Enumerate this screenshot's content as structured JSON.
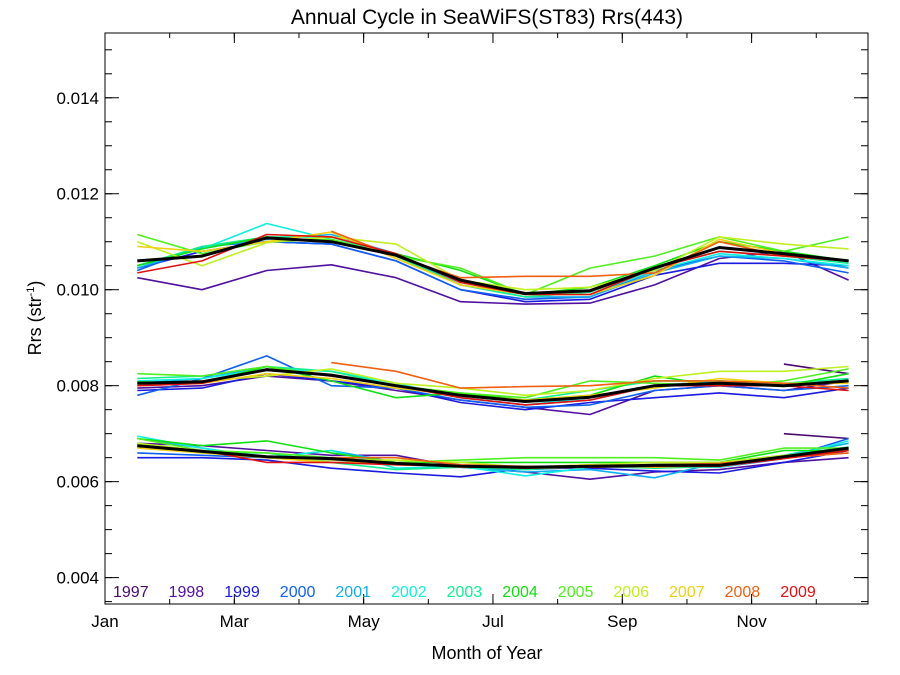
{
  "chart_data": {
    "type": "line",
    "title": "Annual Cycle in SeaWiFS(ST83) Rrs(443)",
    "xlabel": "Month of Year",
    "ylabel_main": "Rrs (str",
    "ylabel_sup": "-1",
    "ylabel_close": ")",
    "xlim": [
      1,
      12.8
    ],
    "ylim": [
      0.00345,
      0.01535
    ],
    "x_ticks": [
      {
        "value": 1,
        "label": "Jan"
      },
      {
        "value": 3,
        "label": "Mar"
      },
      {
        "value": 5,
        "label": "May"
      },
      {
        "value": 7,
        "label": "Jul"
      },
      {
        "value": 9,
        "label": "Sep"
      },
      {
        "value": 11,
        "label": "Nov"
      }
    ],
    "y_ticks": [
      {
        "value": 0.004,
        "label": "0.004"
      },
      {
        "value": 0.006,
        "label": "0.006"
      },
      {
        "value": 0.008,
        "label": "0.008"
      },
      {
        "value": 0.01,
        "label": "0.010"
      },
      {
        "value": 0.012,
        "label": "0.012"
      },
      {
        "value": 0.014,
        "label": "0.014"
      }
    ],
    "x": [
      1.5,
      2.5,
      3.5,
      4.5,
      5.5,
      6.5,
      7.5,
      8.5,
      9.5,
      10.5,
      11.5,
      12.5
    ],
    "legend_placement": "bottom-left",
    "series": [
      {
        "name": "1997",
        "color": "#4a0a6e",
        "groups": [
          [
            null,
            null,
            null,
            null,
            null,
            null,
            null,
            null,
            null,
            null,
            null,
            null
          ],
          [
            null,
            null,
            null,
            null,
            null,
            null,
            null,
            null,
            null,
            null,
            0.00845,
            0.00825
          ],
          [
            null,
            null,
            null,
            null,
            null,
            null,
            null,
            null,
            null,
            null,
            0.007,
            0.0069
          ]
        ]
      },
      {
        "name": "1998",
        "color": "#5010a0",
        "groups": [
          [
            0.01025,
            0.01,
            0.0104,
            0.01052,
            0.01025,
            0.00975,
            0.0097,
            0.00972,
            0.0101,
            0.01065,
            0.0108,
            0.0102
          ],
          [
            0.00795,
            0.008,
            0.0082,
            0.0081,
            0.0079,
            0.0077,
            0.00755,
            0.0074,
            0.0079,
            0.008,
            0.0079,
            0.0081
          ],
          [
            0.0068,
            0.00675,
            0.00665,
            0.00655,
            0.00655,
            0.0063,
            0.0062,
            0.00605,
            0.0062,
            0.00625,
            0.0064,
            0.0065
          ]
        ]
      },
      {
        "name": "1999",
        "color": "#1a1ae0",
        "groups": [
          [
            0.01045,
            0.0108,
            0.011,
            0.01095,
            0.0106,
            0.01,
            0.00975,
            0.0098,
            0.0103,
            0.01055,
            0.01055,
            0.0105
          ],
          [
            0.0079,
            0.00795,
            0.00825,
            0.0081,
            0.00795,
            0.00765,
            0.0075,
            0.00765,
            0.00775,
            0.00785,
            0.00775,
            0.00795
          ],
          [
            0.0065,
            0.0065,
            0.00645,
            0.00628,
            0.00618,
            0.0061,
            0.00628,
            0.00628,
            0.00622,
            0.00618,
            0.0064,
            0.00665
          ]
        ]
      },
      {
        "name": "2000",
        "color": "#1060f0",
        "groups": [
          [
            0.0104,
            0.0109,
            0.011,
            0.01095,
            0.0106,
            0.01,
            0.0098,
            0.00985,
            0.0104,
            0.0107,
            0.0106,
            0.01035
          ],
          [
            0.0078,
            0.00815,
            0.00862,
            0.008,
            0.00795,
            0.0077,
            0.00755,
            0.0076,
            0.0079,
            0.008,
            0.0079,
            0.008
          ],
          [
            0.0066,
            0.00655,
            0.0065,
            0.00645,
            0.0064,
            0.0063,
            0.00625,
            0.0063,
            0.00632,
            0.0063,
            0.00648,
            0.0069
          ]
        ]
      },
      {
        "name": "2001",
        "color": "#10b0f0",
        "groups": [
          [
            0.01045,
            0.01088,
            0.01105,
            0.01115,
            0.01075,
            0.0101,
            0.00985,
            0.00985,
            0.01035,
            0.0107,
            0.01065,
            0.01045
          ],
          [
            0.00805,
            0.00815,
            0.0084,
            0.0082,
            0.008,
            0.00775,
            0.0076,
            0.0077,
            0.008,
            0.0081,
            0.008,
            0.0081
          ],
          [
            0.0069,
            0.0067,
            0.0065,
            0.00665,
            0.0064,
            0.0063,
            0.0062,
            0.00625,
            0.00608,
            0.0064,
            0.00655,
            0.0068
          ]
        ]
      },
      {
        "name": "2002",
        "color": "#10f0e0",
        "groups": [
          [
            0.0105,
            0.01085,
            0.01138,
            0.01105,
            0.0107,
            0.0101,
            0.0099,
            0.0099,
            0.0104,
            0.01075,
            0.01065,
            0.0105
          ],
          [
            0.0081,
            0.00815,
            0.00835,
            0.0083,
            0.00805,
            0.00775,
            0.0076,
            0.00775,
            0.008,
            0.0081,
            0.008,
            0.0081
          ],
          [
            0.00695,
            0.0067,
            0.0065,
            0.00665,
            0.00628,
            0.00632,
            0.00612,
            0.0063,
            0.00632,
            0.0063,
            0.0065,
            0.00685
          ]
        ]
      },
      {
        "name": "2003",
        "color": "#10f090",
        "groups": [
          [
            0.0105,
            0.0109,
            0.0111,
            0.0111,
            0.0107,
            0.0101,
            0.00985,
            0.00995,
            0.01045,
            0.0108,
            0.0107,
            0.01055
          ],
          [
            0.00815,
            0.0082,
            0.0084,
            0.0083,
            0.008,
            0.0078,
            0.0077,
            0.0079,
            0.0081,
            0.0081,
            0.00805,
            0.00815
          ],
          [
            0.0068,
            0.0066,
            0.0066,
            0.0064,
            0.00625,
            0.0063,
            0.00625,
            0.00632,
            0.00628,
            0.00632,
            0.00655,
            0.00672
          ]
        ]
      },
      {
        "name": "2004",
        "color": "#10e010",
        "groups": [
          [
            0.0105,
            0.01085,
            0.0111,
            0.011,
            0.01075,
            0.0104,
            0.0099,
            0.01005,
            0.0105,
            0.011,
            0.0108,
            0.0106
          ],
          [
            0.00808,
            0.00805,
            0.0084,
            0.0081,
            0.00775,
            0.00785,
            0.0077,
            0.0078,
            0.0082,
            0.008,
            0.008,
            0.00825
          ],
          [
            0.0069,
            0.00675,
            0.00685,
            0.0066,
            0.0064,
            0.0064,
            0.0064,
            0.0064,
            0.0064,
            0.0064,
            0.00665,
            0.00665
          ]
        ]
      },
      {
        "name": "2005",
        "color": "#50f020",
        "groups": [
          [
            0.01115,
            0.01075,
            0.011,
            0.01105,
            0.0107,
            0.01045,
            0.0099,
            0.01045,
            0.0107,
            0.0111,
            0.0108,
            0.0111
          ],
          [
            0.00825,
            0.0082,
            0.0084,
            0.0082,
            0.008,
            0.00785,
            0.00775,
            0.0081,
            0.00805,
            0.008,
            0.0081,
            0.00835
          ],
          [
            0.0069,
            0.00665,
            0.0066,
            0.0065,
            0.0064,
            0.00645,
            0.0065,
            0.0065,
            0.0065,
            0.00645,
            0.0067,
            0.0067
          ]
        ]
      },
      {
        "name": "2006",
        "color": "#c0f020",
        "groups": [
          [
            0.011,
            0.0105,
            0.01098,
            0.0111,
            0.01095,
            0.0102,
            0.01,
            0.01005,
            0.0104,
            0.0111,
            0.01095,
            0.01085
          ],
          [
            0.00805,
            0.0081,
            0.0082,
            0.00835,
            0.00805,
            0.00795,
            0.0078,
            0.0079,
            0.00815,
            0.0083,
            0.0083,
            0.0084
          ],
          [
            0.0068,
            0.00665,
            0.0065,
            0.00645,
            0.00645,
            0.0064,
            0.0063,
            0.00635,
            0.0064,
            0.0064,
            0.00655,
            0.00665
          ]
        ]
      },
      {
        "name": "2007",
        "color": "#f0d010",
        "groups": [
          [
            0.0109,
            0.0108,
            0.011,
            0.0112,
            0.01065,
            0.0101,
            0.0099,
            0.0099,
            0.0103,
            0.01105,
            0.01075,
            0.0106
          ],
          [
            0.008,
            0.00805,
            0.00825,
            0.00815,
            0.00795,
            0.0078,
            0.0077,
            0.0078,
            0.00795,
            0.00815,
            0.00805,
            0.00805
          ],
          [
            0.0067,
            0.0066,
            0.0065,
            0.0064,
            0.0064,
            0.0063,
            0.0063,
            0.00635,
            0.0063,
            0.00635,
            0.0065,
            0.0066
          ]
        ]
      },
      {
        "name": "2008",
        "color": "#f06010",
        "groups": [
          [
            null,
            null,
            null,
            0.01122,
            0.0107,
            0.01025,
            0.01028,
            0.01028,
            0.01035,
            0.011,
            0.0107,
            0.0106
          ],
          [
            null,
            null,
            null,
            0.00848,
            0.0083,
            0.00795,
            0.00798,
            0.008,
            0.0081,
            0.0081,
            0.00805,
            0.00795
          ],
          [
            null,
            null,
            null,
            0.0065,
            0.0065,
            0.00635,
            0.00632,
            0.0063,
            0.00635,
            0.00638,
            0.0065,
            0.0066
          ]
        ]
      },
      {
        "name": "2009",
        "color": "#e01010",
        "groups": [
          [
            0.01035,
            0.0106,
            0.01115,
            0.0111,
            0.01075,
            0.01015,
            0.0099,
            0.0099,
            0.01045,
            0.0108,
            0.0107,
            0.0106
          ],
          [
            0.008,
            0.00805,
            0.00835,
            0.0082,
            0.008,
            0.00775,
            0.0076,
            0.0077,
            0.008,
            0.008,
            0.008,
            0.0079
          ],
          [
            0.00675,
            0.00665,
            0.0064,
            0.0064,
            0.00635,
            0.00632,
            0.00628,
            0.0063,
            0.00632,
            0.00632,
            0.00648,
            0.00665
          ]
        ]
      },
      {
        "name": "",
        "color": "#000000",
        "width": 3,
        "groups": [
          [
            0.0106,
            0.0107,
            0.01108,
            0.011,
            0.01072,
            0.0102,
            0.00992,
            0.00998,
            0.01045,
            0.01088,
            0.01075,
            0.0106
          ],
          [
            0.00805,
            0.00808,
            0.00833,
            0.00822,
            0.008,
            0.0078,
            0.00767,
            0.00776,
            0.008,
            0.00805,
            0.008,
            0.0081
          ],
          [
            0.00675,
            0.00663,
            0.00652,
            0.00648,
            0.00638,
            0.00632,
            0.0063,
            0.00632,
            0.00634,
            0.00634,
            0.00652,
            0.0067
          ]
        ]
      }
    ]
  }
}
